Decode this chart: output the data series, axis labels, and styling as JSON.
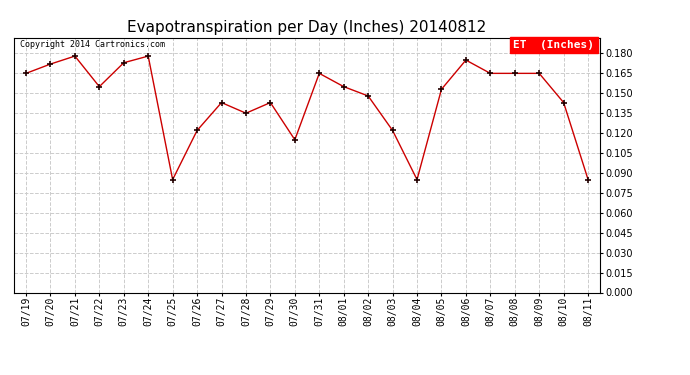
{
  "title": "Evapotranspiration per Day (Inches) 20140812",
  "legend_label": "ET  (Inches)",
  "copyright": "Copyright 2014 Cartronics.com",
  "x_labels": [
    "07/19",
    "07/20",
    "07/21",
    "07/22",
    "07/23",
    "07/24",
    "07/25",
    "07/26",
    "07/27",
    "07/28",
    "07/29",
    "07/30",
    "07/31",
    "08/01",
    "08/02",
    "08/03",
    "08/04",
    "08/05",
    "08/06",
    "08/07",
    "08/08",
    "08/09",
    "08/10",
    "08/11"
  ],
  "y_values": [
    0.165,
    0.172,
    0.178,
    0.155,
    0.173,
    0.178,
    0.085,
    0.122,
    0.143,
    0.135,
    0.143,
    0.115,
    0.165,
    0.155,
    0.148,
    0.122,
    0.085,
    0.153,
    0.175,
    0.165,
    0.165,
    0.165,
    0.143,
    0.085
  ],
  "line_color": "#cc0000",
  "marker_color": "#220000",
  "background_color": "#ffffff",
  "grid_color": "#cccccc",
  "ylim": [
    0.0,
    0.192
  ],
  "yticks": [
    0.0,
    0.015,
    0.03,
    0.045,
    0.06,
    0.075,
    0.09,
    0.105,
    0.12,
    0.135,
    0.15,
    0.165,
    0.18
  ],
  "title_fontsize": 11,
  "tick_fontsize": 7,
  "copyright_fontsize": 6,
  "legend_fontsize": 8
}
